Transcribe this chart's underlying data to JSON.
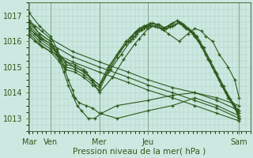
{
  "xlabel": "Pression niveau de la mer( hPa )",
  "bg_color": "#cce8e0",
  "line_color": "#2d5a1b",
  "grid_color": "#a8cfc4",
  "ylim": [
    1012.5,
    1017.5
  ],
  "xlim": [
    0,
    10
  ],
  "day_labels": [
    "Mar",
    "Ven",
    "Mer",
    "Jeu",
    "Sam"
  ],
  "day_positions": [
    0.05,
    1.0,
    3.2,
    5.4,
    9.5
  ],
  "yticks": [
    1013,
    1014,
    1015,
    1016,
    1017
  ],
  "series": [
    {
      "x": [
        0.05,
        0.5,
        1.0,
        1.3,
        1.6,
        1.8,
        2.0,
        2.1,
        2.3,
        2.6,
        2.9,
        3.2,
        4.0,
        5.4,
        6.5,
        7.5,
        8.5,
        9.5
      ],
      "y": [
        1017.1,
        1016.6,
        1016.2,
        1015.7,
        1015.0,
        1014.5,
        1014.1,
        1013.8,
        1013.6,
        1013.5,
        1013.4,
        1013.2,
        1013.0,
        1013.3,
        1013.5,
        1013.8,
        1013.5,
        1013.1
      ]
    },
    {
      "x": [
        0.05,
        0.5,
        1.0,
        1.3,
        1.6,
        1.8,
        2.0,
        2.2,
        2.4,
        2.7,
        3.0,
        3.3,
        4.0,
        5.4,
        6.5,
        7.5,
        8.5,
        9.5
      ],
      "y": [
        1016.8,
        1016.3,
        1016.0,
        1015.5,
        1014.8,
        1014.3,
        1013.9,
        1013.5,
        1013.3,
        1013.0,
        1013.0,
        1013.2,
        1013.5,
        1013.7,
        1013.9,
        1014.0,
        1013.8,
        1013.5
      ]
    },
    {
      "x": [
        0.05,
        0.5,
        1.0,
        1.3,
        1.7,
        2.1,
        2.6,
        3.0,
        3.2,
        3.8,
        4.3,
        4.8,
        5.0,
        5.2,
        5.4,
        5.7,
        6.0,
        6.3,
        6.8,
        7.2,
        7.5,
        7.8,
        8.0,
        8.3,
        8.6,
        9.0,
        9.3,
        9.5
      ],
      "y": [
        1016.7,
        1016.3,
        1016.0,
        1015.6,
        1015.2,
        1015.0,
        1014.8,
        1014.3,
        1014.0,
        1014.6,
        1015.3,
        1015.9,
        1016.1,
        1016.3,
        1016.5,
        1016.6,
        1016.5,
        1016.3,
        1016.0,
        1016.3,
        1016.5,
        1016.4,
        1016.2,
        1016.0,
        1015.5,
        1015.0,
        1014.5,
        1013.8
      ]
    },
    {
      "x": [
        0.05,
        0.5,
        1.0,
        1.3,
        1.7,
        2.1,
        2.5,
        2.9,
        3.2,
        3.7,
        4.2,
        4.6,
        4.8,
        5.0,
        5.2,
        5.4,
        5.6,
        5.9,
        6.2,
        6.5,
        6.8,
        7.1,
        7.4,
        7.8,
        8.1,
        8.4,
        8.7,
        9.0,
        9.3,
        9.5
      ],
      "y": [
        1016.6,
        1016.2,
        1015.9,
        1015.5,
        1015.2,
        1015.1,
        1014.9,
        1014.5,
        1014.3,
        1014.9,
        1015.5,
        1016.0,
        1016.2,
        1016.4,
        1016.5,
        1016.6,
        1016.7,
        1016.65,
        1016.5,
        1016.6,
        1016.7,
        1016.5,
        1016.3,
        1015.8,
        1015.3,
        1014.8,
        1014.3,
        1013.9,
        1013.5,
        1013.0
      ]
    },
    {
      "x": [
        0.05,
        0.5,
        1.0,
        1.4,
        1.7,
        2.1,
        2.5,
        2.9,
        3.2,
        3.6,
        4.1,
        4.5,
        4.7,
        4.9,
        5.1,
        5.3,
        5.5,
        5.8,
        6.1,
        6.4,
        6.7,
        7.0,
        7.3,
        7.5,
        7.7,
        8.0,
        8.3,
        8.6,
        8.9,
        9.2,
        9.5
      ],
      "y": [
        1016.5,
        1016.1,
        1015.8,
        1015.4,
        1015.1,
        1015.0,
        1014.8,
        1014.5,
        1014.3,
        1015.0,
        1015.6,
        1016.0,
        1016.2,
        1016.4,
        1016.5,
        1016.6,
        1016.7,
        1016.65,
        1016.5,
        1016.65,
        1016.8,
        1016.6,
        1016.4,
        1016.2,
        1016.0,
        1015.5,
        1015.0,
        1014.5,
        1014.0,
        1013.6,
        1013.2
      ]
    },
    {
      "x": [
        0.05,
        0.5,
        1.0,
        1.4,
        1.7,
        2.1,
        2.5,
        2.9,
        3.2,
        3.6,
        4.0,
        4.4,
        4.6,
        4.8,
        5.0,
        5.2,
        5.4,
        5.7,
        6.0,
        6.3,
        6.5,
        6.7,
        6.9,
        7.1,
        7.3,
        7.5,
        7.8,
        8.1,
        8.4,
        8.7,
        9.0,
        9.3,
        9.5
      ],
      "y": [
        1016.4,
        1016.0,
        1015.7,
        1015.3,
        1015.0,
        1014.9,
        1014.7,
        1014.4,
        1014.2,
        1014.9,
        1015.5,
        1016.0,
        1016.15,
        1016.35,
        1016.5,
        1016.6,
        1016.65,
        1016.6,
        1016.5,
        1016.6,
        1016.7,
        1016.8,
        1016.7,
        1016.55,
        1016.4,
        1016.25,
        1015.8,
        1015.3,
        1014.8,
        1014.3,
        1013.8,
        1013.4,
        1013.0
      ]
    },
    {
      "x": [
        0.05,
        0.5,
        1.0,
        1.4,
        1.7,
        2.1,
        2.5,
        2.9,
        3.2,
        3.6,
        4.0,
        4.4,
        4.7,
        4.9,
        5.1,
        5.3,
        5.5,
        5.8,
        6.1,
        6.4,
        6.6,
        6.8,
        7.0,
        7.2,
        7.4,
        7.6,
        7.9,
        8.2,
        8.5,
        8.8,
        9.1,
        9.4,
        9.5
      ],
      "y": [
        1016.3,
        1015.9,
        1015.6,
        1015.2,
        1014.9,
        1014.8,
        1014.6,
        1014.3,
        1014.1,
        1014.8,
        1015.4,
        1015.9,
        1016.1,
        1016.3,
        1016.45,
        1016.55,
        1016.6,
        1016.55,
        1016.45,
        1016.55,
        1016.65,
        1016.75,
        1016.65,
        1016.5,
        1016.35,
        1016.2,
        1015.75,
        1015.25,
        1014.75,
        1014.25,
        1013.75,
        1013.35,
        1013.0
      ]
    },
    {
      "x": [
        0.05,
        0.3,
        0.6,
        1.0,
        2.0,
        3.2,
        4.5,
        5.4,
        6.5,
        7.5,
        8.5,
        9.5
      ],
      "y": [
        1016.8,
        1016.6,
        1016.4,
        1016.1,
        1015.6,
        1015.2,
        1014.8,
        1014.5,
        1014.2,
        1014.0,
        1013.7,
        1013.3
      ]
    },
    {
      "x": [
        0.05,
        0.3,
        0.6,
        1.0,
        2.0,
        3.2,
        4.5,
        5.4,
        6.5,
        7.5,
        8.5,
        9.5
      ],
      "y": [
        1016.5,
        1016.3,
        1016.1,
        1015.9,
        1015.4,
        1015.0,
        1014.6,
        1014.3,
        1014.0,
        1013.7,
        1013.4,
        1013.0
      ]
    },
    {
      "x": [
        0.05,
        0.3,
        0.6,
        1.0,
        2.0,
        3.2,
        4.5,
        5.4,
        6.5,
        7.5,
        8.5,
        9.5
      ],
      "y": [
        1016.2,
        1016.0,
        1015.8,
        1015.6,
        1015.2,
        1014.8,
        1014.4,
        1014.1,
        1013.8,
        1013.5,
        1013.2,
        1012.9
      ]
    }
  ],
  "marker_size": 3.0,
  "linewidth": 0.8,
  "font_size_label": 7.5,
  "font_size_tick": 7
}
